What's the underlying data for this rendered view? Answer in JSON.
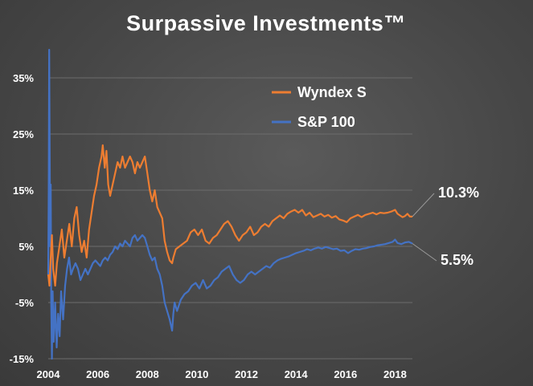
{
  "chart_data": {
    "type": "line",
    "title": "Surpassive Investments™",
    "xlabel": "",
    "ylabel": "",
    "xlim": [
      2004,
      2018.7
    ],
    "ylim": [
      -15,
      40
    ],
    "grid": true,
    "legend_placement": "top-right",
    "x_ticks": [
      {
        "value": 2004,
        "label": "2004"
      },
      {
        "value": 2006,
        "label": "2006"
      },
      {
        "value": 2008,
        "label": "2008"
      },
      {
        "value": 2010,
        "label": "2010"
      },
      {
        "value": 2012,
        "label": "2012"
      },
      {
        "value": 2014,
        "label": "2014"
      },
      {
        "value": 2016,
        "label": "2016"
      },
      {
        "value": 2018,
        "label": "2018"
      }
    ],
    "y_ticks": [
      {
        "value": 35,
        "label": "35%"
      },
      {
        "value": 25,
        "label": "25%"
      },
      {
        "value": 15,
        "label": "15%"
      },
      {
        "value": 5,
        "label": "5%"
      },
      {
        "value": -5,
        "label": "-5%"
      },
      {
        "value": -15,
        "label": "-15%"
      }
    ],
    "series": [
      {
        "name": "Wyndex S",
        "color": "#ed7d31",
        "end_label": "10.3%",
        "points": [
          [
            2004.0,
            0
          ],
          [
            2004.05,
            -2
          ],
          [
            2004.1,
            3
          ],
          [
            2004.15,
            7
          ],
          [
            2004.2,
            1
          ],
          [
            2004.28,
            -2
          ],
          [
            2004.35,
            2
          ],
          [
            2004.45,
            5
          ],
          [
            2004.55,
            8
          ],
          [
            2004.65,
            3
          ],
          [
            2004.75,
            6
          ],
          [
            2004.85,
            9
          ],
          [
            2004.95,
            5
          ],
          [
            2005.05,
            10
          ],
          [
            2005.15,
            12
          ],
          [
            2005.25,
            7
          ],
          [
            2005.35,
            4
          ],
          [
            2005.45,
            6
          ],
          [
            2005.55,
            3
          ],
          [
            2005.65,
            8
          ],
          [
            2005.75,
            11
          ],
          [
            2005.85,
            14
          ],
          [
            2005.95,
            16
          ],
          [
            2006.05,
            19
          ],
          [
            2006.15,
            21
          ],
          [
            2006.2,
            23
          ],
          [
            2006.28,
            19
          ],
          [
            2006.35,
            22
          ],
          [
            2006.42,
            16
          ],
          [
            2006.5,
            14
          ],
          [
            2006.6,
            16
          ],
          [
            2006.7,
            18
          ],
          [
            2006.8,
            20
          ],
          [
            2006.9,
            19
          ],
          [
            2007.0,
            21
          ],
          [
            2007.1,
            19
          ],
          [
            2007.2,
            20
          ],
          [
            2007.3,
            21
          ],
          [
            2007.4,
            20
          ],
          [
            2007.5,
            18
          ],
          [
            2007.6,
            20
          ],
          [
            2007.7,
            19
          ],
          [
            2007.8,
            20
          ],
          [
            2007.9,
            21
          ],
          [
            2008.0,
            18
          ],
          [
            2008.1,
            15
          ],
          [
            2008.2,
            13
          ],
          [
            2008.3,
            15
          ],
          [
            2008.4,
            12
          ],
          [
            2008.5,
            11
          ],
          [
            2008.6,
            10
          ],
          [
            2008.7,
            6
          ],
          [
            2008.8,
            4
          ],
          [
            2008.9,
            2.5
          ],
          [
            2009.0,
            2
          ],
          [
            2009.05,
            3
          ],
          [
            2009.15,
            4.5
          ],
          [
            2009.3,
            5
          ],
          [
            2009.45,
            5.5
          ],
          [
            2009.6,
            6
          ],
          [
            2009.75,
            7.5
          ],
          [
            2009.9,
            8
          ],
          [
            2010.05,
            7
          ],
          [
            2010.2,
            8
          ],
          [
            2010.35,
            6
          ],
          [
            2010.5,
            5.5
          ],
          [
            2010.65,
            6.5
          ],
          [
            2010.8,
            7
          ],
          [
            2010.95,
            8
          ],
          [
            2011.1,
            9
          ],
          [
            2011.25,
            9.5
          ],
          [
            2011.4,
            8.5
          ],
          [
            2011.55,
            7
          ],
          [
            2011.7,
            6
          ],
          [
            2011.85,
            7
          ],
          [
            2012.0,
            7.5
          ],
          [
            2012.15,
            8.5
          ],
          [
            2012.3,
            7
          ],
          [
            2012.45,
            7.5
          ],
          [
            2012.6,
            8.5
          ],
          [
            2012.75,
            9
          ],
          [
            2012.9,
            8.5
          ],
          [
            2013.05,
            9.5
          ],
          [
            2013.2,
            10
          ],
          [
            2013.35,
            10.5
          ],
          [
            2013.5,
            10
          ],
          [
            2013.65,
            10.8
          ],
          [
            2013.8,
            11.2
          ],
          [
            2013.95,
            11.5
          ],
          [
            2014.1,
            11
          ],
          [
            2014.25,
            11.5
          ],
          [
            2014.4,
            10.5
          ],
          [
            2014.55,
            11
          ],
          [
            2014.7,
            10.2
          ],
          [
            2014.85,
            10.5
          ],
          [
            2015.0,
            10.8
          ],
          [
            2015.15,
            10.3
          ],
          [
            2015.3,
            10.6
          ],
          [
            2015.45,
            10.1
          ],
          [
            2015.6,
            10.4
          ],
          [
            2015.75,
            9.8
          ],
          [
            2015.9,
            9.6
          ],
          [
            2016.05,
            9.3
          ],
          [
            2016.2,
            10
          ],
          [
            2016.35,
            10.3
          ],
          [
            2016.5,
            10.6
          ],
          [
            2016.65,
            10.2
          ],
          [
            2016.8,
            10.6
          ],
          [
            2016.95,
            10.8
          ],
          [
            2017.1,
            11
          ],
          [
            2017.25,
            10.7
          ],
          [
            2017.4,
            11
          ],
          [
            2017.55,
            10.9
          ],
          [
            2017.7,
            11
          ],
          [
            2017.85,
            11.2
          ],
          [
            2018.0,
            11.5
          ],
          [
            2018.1,
            10.8
          ],
          [
            2018.2,
            10.5
          ],
          [
            2018.3,
            10.2
          ],
          [
            2018.4,
            10.4
          ],
          [
            2018.5,
            10.8
          ],
          [
            2018.6,
            10.3
          ],
          [
            2018.7,
            10.3
          ]
        ]
      },
      {
        "name": "S&P 100",
        "color": "#4472c4",
        "end_label": "5.5%",
        "points": [
          [
            2004.0,
            0
          ],
          [
            2004.02,
            15
          ],
          [
            2004.04,
            40
          ],
          [
            2004.06,
            22
          ],
          [
            2004.08,
            5
          ],
          [
            2004.1,
            16
          ],
          [
            2004.12,
            -5
          ],
          [
            2004.15,
            -15
          ],
          [
            2004.18,
            -3
          ],
          [
            2004.22,
            -12
          ],
          [
            2004.28,
            -5
          ],
          [
            2004.34,
            -13
          ],
          [
            2004.4,
            -7
          ],
          [
            2004.46,
            -11
          ],
          [
            2004.52,
            -3
          ],
          [
            2004.6,
            -8
          ],
          [
            2004.68,
            -2
          ],
          [
            2004.76,
            1
          ],
          [
            2004.84,
            3
          ],
          [
            2004.92,
            0
          ],
          [
            2005.0,
            1
          ],
          [
            2005.1,
            2
          ],
          [
            2005.2,
            1
          ],
          [
            2005.3,
            -1
          ],
          [
            2005.4,
            0
          ],
          [
            2005.5,
            1
          ],
          [
            2005.6,
            0
          ],
          [
            2005.7,
            1
          ],
          [
            2005.8,
            2
          ],
          [
            2005.9,
            2.5
          ],
          [
            2006.0,
            2
          ],
          [
            2006.1,
            1.5
          ],
          [
            2006.2,
            2.5
          ],
          [
            2006.3,
            3
          ],
          [
            2006.4,
            2.5
          ],
          [
            2006.5,
            3.5
          ],
          [
            2006.6,
            4
          ],
          [
            2006.7,
            5
          ],
          [
            2006.8,
            4.5
          ],
          [
            2006.9,
            5.5
          ],
          [
            2007.0,
            5
          ],
          [
            2007.1,
            6
          ],
          [
            2007.2,
            5.5
          ],
          [
            2007.3,
            5
          ],
          [
            2007.4,
            6.5
          ],
          [
            2007.5,
            7
          ],
          [
            2007.6,
            6
          ],
          [
            2007.7,
            6.5
          ],
          [
            2007.8,
            7
          ],
          [
            2007.9,
            6.5
          ],
          [
            2008.0,
            5
          ],
          [
            2008.1,
            3.5
          ],
          [
            2008.2,
            2.5
          ],
          [
            2008.3,
            3
          ],
          [
            2008.4,
            1
          ],
          [
            2008.5,
            0
          ],
          [
            2008.6,
            -2
          ],
          [
            2008.7,
            -5
          ],
          [
            2008.8,
            -6.5
          ],
          [
            2008.9,
            -8
          ],
          [
            2009.0,
            -10
          ],
          [
            2009.05,
            -7
          ],
          [
            2009.1,
            -5
          ],
          [
            2009.2,
            -6.5
          ],
          [
            2009.35,
            -4.5
          ],
          [
            2009.5,
            -3.5
          ],
          [
            2009.65,
            -3
          ],
          [
            2009.8,
            -2
          ],
          [
            2009.95,
            -1.5
          ],
          [
            2010.1,
            -2.5
          ],
          [
            2010.25,
            -1
          ],
          [
            2010.4,
            -2.5
          ],
          [
            2010.55,
            -2
          ],
          [
            2010.7,
            -1
          ],
          [
            2010.85,
            -0.5
          ],
          [
            2011.0,
            0.5
          ],
          [
            2011.15,
            1
          ],
          [
            2011.3,
            1.5
          ],
          [
            2011.45,
            0
          ],
          [
            2011.6,
            -1
          ],
          [
            2011.75,
            -1.5
          ],
          [
            2011.9,
            -1
          ],
          [
            2012.05,
            0
          ],
          [
            2012.2,
            0.5
          ],
          [
            2012.35,
            0
          ],
          [
            2012.5,
            0.5
          ],
          [
            2012.65,
            1
          ],
          [
            2012.8,
            1.5
          ],
          [
            2012.95,
            1.2
          ],
          [
            2013.1,
            2
          ],
          [
            2013.25,
            2.5
          ],
          [
            2013.4,
            2.8
          ],
          [
            2013.55,
            3
          ],
          [
            2013.7,
            3.2
          ],
          [
            2013.85,
            3.5
          ],
          [
            2014.0,
            3.8
          ],
          [
            2014.15,
            4
          ],
          [
            2014.3,
            4.2
          ],
          [
            2014.45,
            4.5
          ],
          [
            2014.6,
            4.3
          ],
          [
            2014.75,
            4.6
          ],
          [
            2014.9,
            4.8
          ],
          [
            2015.05,
            4.6
          ],
          [
            2015.2,
            4.9
          ],
          [
            2015.35,
            4.7
          ],
          [
            2015.5,
            4.5
          ],
          [
            2015.65,
            4.6
          ],
          [
            2015.8,
            4.2
          ],
          [
            2015.95,
            4.3
          ],
          [
            2016.1,
            3.8
          ],
          [
            2016.25,
            4.2
          ],
          [
            2016.4,
            4.5
          ],
          [
            2016.55,
            4.4
          ],
          [
            2016.7,
            4.6
          ],
          [
            2016.85,
            4.7
          ],
          [
            2017.0,
            4.9
          ],
          [
            2017.15,
            5
          ],
          [
            2017.3,
            5.2
          ],
          [
            2017.45,
            5.3
          ],
          [
            2017.6,
            5.4
          ],
          [
            2017.75,
            5.6
          ],
          [
            2017.9,
            5.8
          ],
          [
            2018.0,
            6.2
          ],
          [
            2018.1,
            5.6
          ],
          [
            2018.25,
            5.4
          ],
          [
            2018.4,
            5.7
          ],
          [
            2018.55,
            5.8
          ],
          [
            2018.7,
            5.5
          ]
        ]
      }
    ]
  }
}
